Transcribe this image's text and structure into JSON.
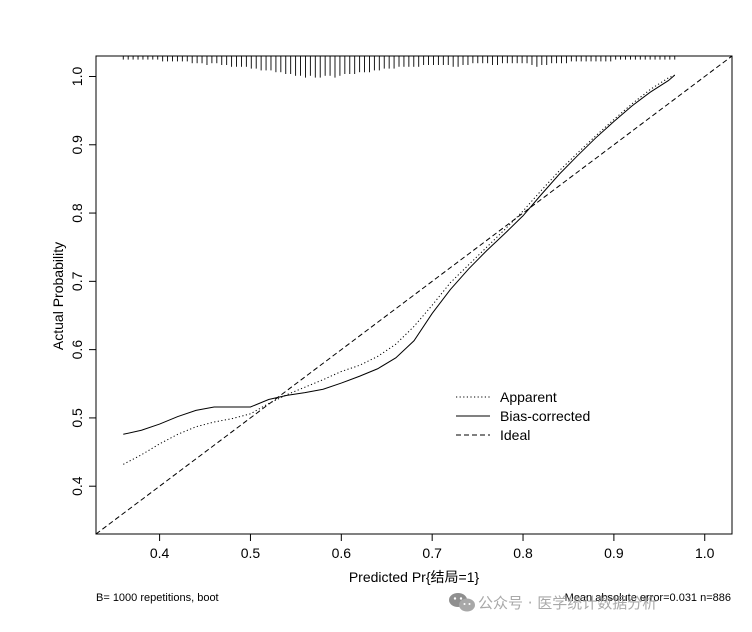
{
  "chart_data": {
    "type": "line",
    "title": "",
    "xlabel": "Predicted Pr{结局=1}",
    "ylabel": "Actual Probability",
    "xlim": [
      0.33,
      1.03
    ],
    "ylim": [
      0.33,
      1.03
    ],
    "x_ticks": [
      0.4,
      0.5,
      0.6,
      0.7,
      0.8,
      0.9,
      1.0
    ],
    "x_tick_labels": [
      "0.4",
      "0.5",
      "0.6",
      "0.7",
      "0.8",
      "0.9",
      "1.0"
    ],
    "y_ticks": [
      0.4,
      0.5,
      0.6,
      0.7,
      0.8,
      0.9,
      1.0
    ],
    "y_tick_labels": [
      "0.4",
      "0.5",
      "0.6",
      "0.7",
      "0.8",
      "0.9",
      "1.0"
    ],
    "grid": false,
    "legend_position": "lower-right",
    "series": [
      {
        "name": "Apparent",
        "linestyle": "dotted",
        "color": "#000000",
        "x": [
          0.36,
          0.38,
          0.4,
          0.42,
          0.44,
          0.46,
          0.48,
          0.5,
          0.52,
          0.54,
          0.56,
          0.58,
          0.6,
          0.62,
          0.64,
          0.66,
          0.68,
          0.7,
          0.72,
          0.74,
          0.76,
          0.78,
          0.8,
          0.82,
          0.84,
          0.86,
          0.88,
          0.9,
          0.92,
          0.94,
          0.96,
          0.967
        ],
        "y": [
          0.432,
          0.446,
          0.462,
          0.476,
          0.487,
          0.494,
          0.499,
          0.506,
          0.521,
          0.534,
          0.545,
          0.556,
          0.568,
          0.577,
          0.59,
          0.608,
          0.634,
          0.665,
          0.698,
          0.724,
          0.75,
          0.776,
          0.803,
          0.833,
          0.862,
          0.888,
          0.913,
          0.937,
          0.96,
          0.981,
          0.998,
          1.002
        ]
      },
      {
        "name": "Bias-corrected",
        "linestyle": "solid",
        "color": "#000000",
        "x": [
          0.36,
          0.38,
          0.4,
          0.42,
          0.44,
          0.46,
          0.48,
          0.5,
          0.52,
          0.54,
          0.56,
          0.58,
          0.6,
          0.62,
          0.64,
          0.66,
          0.68,
          0.7,
          0.72,
          0.74,
          0.76,
          0.78,
          0.8,
          0.82,
          0.84,
          0.86,
          0.88,
          0.9,
          0.92,
          0.94,
          0.96,
          0.967
        ],
        "y": [
          0.476,
          0.482,
          0.491,
          0.502,
          0.511,
          0.516,
          0.516,
          0.516,
          0.527,
          0.533,
          0.537,
          0.542,
          0.551,
          0.561,
          0.572,
          0.588,
          0.613,
          0.653,
          0.688,
          0.718,
          0.745,
          0.77,
          0.796,
          0.827,
          0.857,
          0.884,
          0.91,
          0.934,
          0.957,
          0.977,
          0.994,
          1.002
        ]
      },
      {
        "name": "Ideal",
        "linestyle": "dashed",
        "color": "#000000",
        "x": [
          0.33,
          1.03
        ],
        "y": [
          0.33,
          1.03
        ]
      }
    ],
    "rug_heights": [
      2,
      2,
      2,
      2,
      2,
      2,
      2,
      2,
      3,
      3,
      3,
      3,
      3,
      3,
      4,
      4,
      4,
      5,
      4,
      4,
      5,
      5,
      6,
      6,
      6,
      6,
      7,
      7,
      8,
      8,
      8,
      9,
      9,
      10,
      10,
      11,
      11,
      12,
      11,
      12,
      12,
      11,
      11,
      12,
      11,
      10,
      10,
      10,
      9,
      9,
      9,
      8,
      8,
      7,
      7,
      7,
      6,
      6,
      6,
      6,
      6,
      5,
      5,
      5,
      5,
      5,
      5,
      6,
      6,
      5,
      5,
      4,
      4,
      4,
      4,
      5,
      5,
      4,
      4,
      4,
      4,
      4,
      4,
      5,
      6,
      5,
      5,
      4,
      4,
      4,
      4,
      3,
      3,
      3,
      3,
      3,
      3,
      3,
      3,
      3,
      2,
      2,
      2,
      2,
      2,
      2,
      2,
      2,
      2,
      2,
      2,
      2,
      2
    ],
    "footnote_left": "B= 1000 repetitions, boot",
    "footnote_right": "Mean absolute error=0.031 n=886"
  },
  "watermark": {
    "text": "公众号 · 医学统计数据分析",
    "icon": "wechat-icon"
  }
}
